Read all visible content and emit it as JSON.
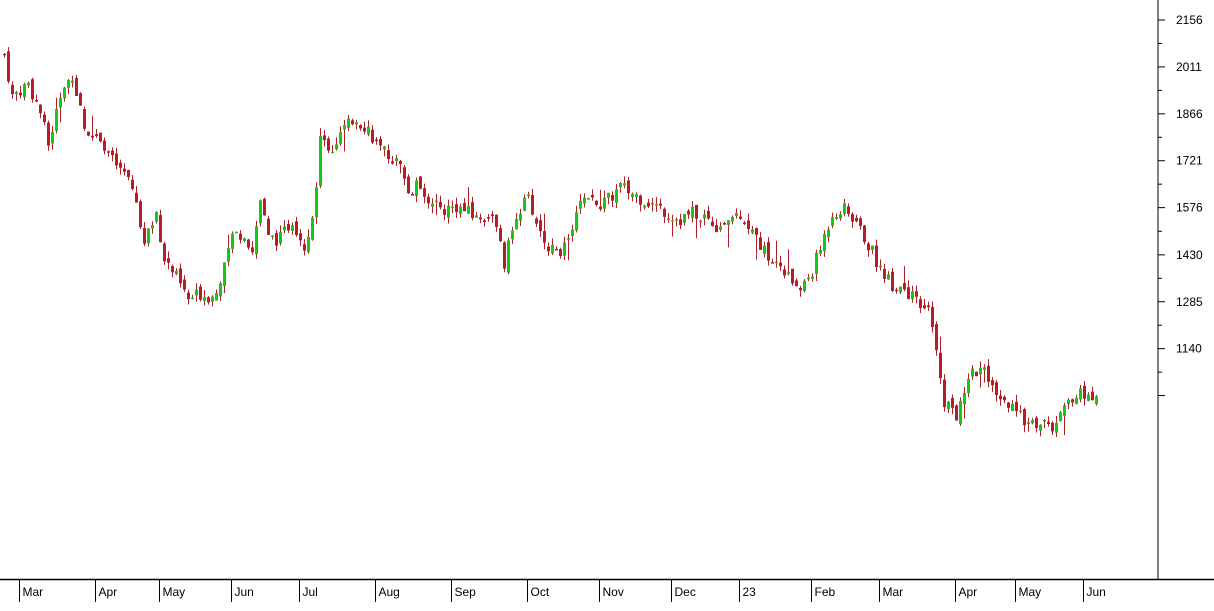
{
  "chart_data": {
    "type": "candlestick",
    "title": "",
    "xlabel": "",
    "ylabel": "",
    "ylim": [
      950,
      2200
    ],
    "y_ticks": [
      {
        "value": 2156,
        "label": "2156"
      },
      {
        "value": 2011,
        "label": "2011"
      },
      {
        "value": 1866,
        "label": "1866"
      },
      {
        "value": 1721,
        "label": "1721"
      },
      {
        "value": 1576,
        "label": "1576"
      },
      {
        "value": 1430,
        "label": "1430"
      },
      {
        "value": 1285,
        "label": "1285"
      },
      {
        "value": 1140,
        "label": "1140"
      },
      {
        "value": 995,
        "label": ""
      }
    ],
    "x_ticks": [
      {
        "index": 4,
        "label": "Mar"
      },
      {
        "index": 23,
        "label": "Apr"
      },
      {
        "index": 39,
        "label": "May"
      },
      {
        "index": 57,
        "label": "Jun"
      },
      {
        "index": 74,
        "label": "Jul"
      },
      {
        "index": 93,
        "label": "Aug"
      },
      {
        "index": 112,
        "label": "Sep"
      },
      {
        "index": 131,
        "label": "Oct"
      },
      {
        "index": 149,
        "label": "Nov"
      },
      {
        "index": 167,
        "label": "Dec"
      },
      {
        "index": 184,
        "label": "23"
      },
      {
        "index": 202,
        "label": "Feb"
      },
      {
        "index": 219,
        "label": "Mar"
      },
      {
        "index": 238,
        "label": "Apr"
      },
      {
        "index": 253,
        "label": "May"
      },
      {
        "index": 270,
        "label": "Jun"
      }
    ],
    "n_days": 274,
    "close_path": [
      [
        0,
        2050
      ],
      [
        2,
        1920
      ],
      [
        6,
        1960
      ],
      [
        9,
        1870
      ],
      [
        11,
        1770
      ],
      [
        14,
        1920
      ],
      [
        17,
        1990
      ],
      [
        20,
        1820
      ],
      [
        24,
        1800
      ],
      [
        27,
        1720
      ],
      [
        30,
        1680
      ],
      [
        33,
        1600
      ],
      [
        35,
        1460
      ],
      [
        38,
        1560
      ],
      [
        40,
        1420
      ],
      [
        43,
        1360
      ],
      [
        46,
        1290
      ],
      [
        49,
        1310
      ],
      [
        52,
        1300
      ],
      [
        55,
        1390
      ],
      [
        57,
        1490
      ],
      [
        60,
        1500
      ],
      [
        62,
        1440
      ],
      [
        64,
        1600
      ],
      [
        66,
        1480
      ],
      [
        69,
        1480
      ],
      [
        72,
        1540
      ],
      [
        75,
        1460
      ],
      [
        77,
        1540
      ],
      [
        79,
        1780
      ],
      [
        82,
        1760
      ],
      [
        85,
        1820
      ],
      [
        88,
        1850
      ],
      [
        91,
        1820
      ],
      [
        94,
        1750
      ],
      [
        97,
        1730
      ],
      [
        99,
        1700
      ],
      [
        101,
        1620
      ],
      [
        104,
        1650
      ],
      [
        107,
        1580
      ],
      [
        110,
        1570
      ],
      [
        113,
        1580
      ],
      [
        116,
        1560
      ],
      [
        119,
        1540
      ],
      [
        122,
        1560
      ],
      [
        125,
        1400
      ],
      [
        128,
        1560
      ],
      [
        131,
        1600
      ],
      [
        134,
        1500
      ],
      [
        137,
        1440
      ],
      [
        140,
        1450
      ],
      [
        142,
        1520
      ],
      [
        145,
        1620
      ],
      [
        148,
        1580
      ],
      [
        151,
        1600
      ],
      [
        154,
        1640
      ],
      [
        157,
        1620
      ],
      [
        160,
        1600
      ],
      [
        163,
        1580
      ],
      [
        166,
        1560
      ],
      [
        169,
        1540
      ],
      [
        172,
        1560
      ],
      [
        175,
        1550
      ],
      [
        178,
        1520
      ],
      [
        181,
        1540
      ],
      [
        184,
        1560
      ],
      [
        187,
        1500
      ],
      [
        190,
        1440
      ],
      [
        193,
        1400
      ],
      [
        196,
        1360
      ],
      [
        199,
        1320
      ],
      [
        202,
        1380
      ],
      [
        204,
        1450
      ],
      [
        207,
        1560
      ],
      [
        210,
        1570
      ],
      [
        213,
        1530
      ],
      [
        216,
        1460
      ],
      [
        219,
        1390
      ],
      [
        222,
        1340
      ],
      [
        225,
        1330
      ],
      [
        228,
        1280
      ],
      [
        231,
        1250
      ],
      [
        233,
        1150
      ],
      [
        235,
        980
      ],
      [
        238,
        930
      ],
      [
        241,
        1060
      ],
      [
        244,
        1080
      ],
      [
        246,
        1040
      ],
      [
        248,
        980
      ],
      [
        251,
        960
      ],
      [
        254,
        930
      ],
      [
        257,
        910
      ],
      [
        260,
        905
      ],
      [
        263,
        895
      ],
      [
        265,
        950
      ],
      [
        267,
        995
      ]
    ],
    "legend": "none",
    "colors": {
      "up": "#14c814",
      "down": "#b41e28",
      "axis": "#000000"
    }
  }
}
